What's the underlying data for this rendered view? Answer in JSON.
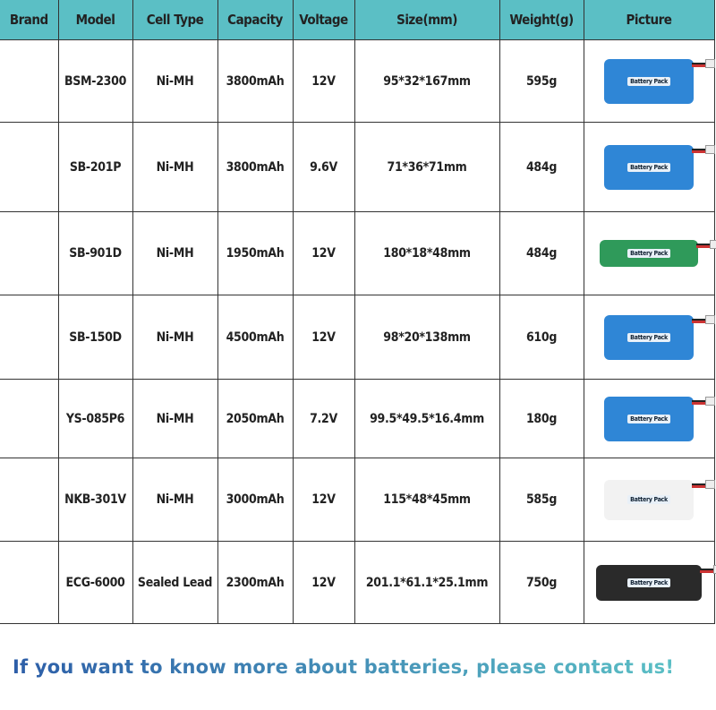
{
  "headers": [
    "Brand",
    "Model",
    "Cell Type",
    "Capacity",
    "Voltage",
    "Size(mm)",
    "Weight(g)",
    "Picture"
  ],
  "rows": [
    {
      "brand": "",
      "model": "BSM-2300",
      "cell": "Ni-MH",
      "capacity": "3800mAh",
      "voltage": "12V",
      "size": "95*32*167mm",
      "weight": "595g",
      "picture": "blue-battery-pack-icon"
    },
    {
      "brand": "",
      "model": "SB-201P",
      "cell": "Ni-MH",
      "capacity": "3800mAh",
      "voltage": "9.6V",
      "size": "71*36*71mm",
      "weight": "484g",
      "picture": "blue-battery-pack-icon"
    },
    {
      "brand": "",
      "model": "SB-901D",
      "cell": "Ni-MH",
      "capacity": "1950mAh",
      "voltage": "12V",
      "size": "180*18*48mm",
      "weight": "484g",
      "picture": "green-stick-battery-icon"
    },
    {
      "brand": "",
      "model": "SB-150D",
      "cell": "Ni-MH",
      "capacity": "4500mAh",
      "voltage": "12V",
      "size": "98*20*138mm",
      "weight": "610g",
      "picture": "blue-battery-pack-icon"
    },
    {
      "brand": "",
      "model": "YS-085P6",
      "cell": "Ni-MH",
      "capacity": "2050mAh",
      "voltage": "7.2V",
      "size": "99.5*49.5*16.4mm",
      "weight": "180g",
      "picture": "blue-battery-pack-icon"
    },
    {
      "brand": "",
      "model": "NKB-301V",
      "cell": "Ni-MH",
      "capacity": "3000mAh",
      "voltage": "12V",
      "size": "115*48*45mm",
      "weight": "585g",
      "picture": "white-battery-pack-icon"
    },
    {
      "brand": "",
      "model": "ECG-6000",
      "cell": "Sealed Lead",
      "capacity": "2300mAh",
      "voltage": "12V",
      "size": "201.1*61.1*25.1mm",
      "weight": "750g",
      "picture": "sealed-lead-battery-icon"
    }
  ],
  "picture_label": "Battery Pack",
  "footer": "If you want to know more about batteries, please contact us!",
  "colors": {
    "header": "#5bbfc5",
    "footer_start": "#2d5ea8",
    "footer_end": "#5bbfc5"
  }
}
